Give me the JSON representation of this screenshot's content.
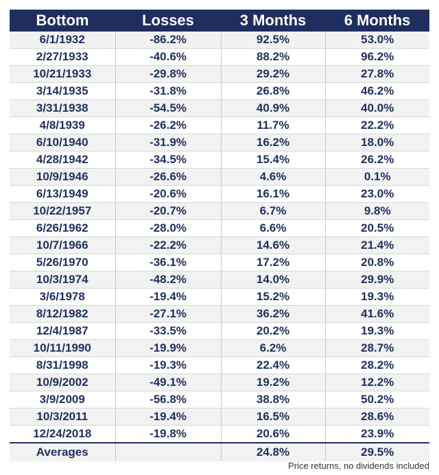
{
  "table": {
    "headers": [
      "Bottom",
      "Losses",
      "3 Months",
      "6 Months"
    ],
    "rows": [
      [
        "6/1/1932",
        "-86.2%",
        "92.5%",
        "53.0%"
      ],
      [
        "2/27/1933",
        "-40.6%",
        "88.2%",
        "96.2%"
      ],
      [
        "10/21/1933",
        "-29.8%",
        "29.2%",
        "27.8%"
      ],
      [
        "3/14/1935",
        "-31.8%",
        "26.8%",
        "46.2%"
      ],
      [
        "3/31/1938",
        "-54.5%",
        "40.9%",
        "40.0%"
      ],
      [
        "4/8/1939",
        "-26.2%",
        "11.7%",
        "22.2%"
      ],
      [
        "6/10/1940",
        "-31.9%",
        "16.2%",
        "18.0%"
      ],
      [
        "4/28/1942",
        "-34.5%",
        "15.4%",
        "26.2%"
      ],
      [
        "10/9/1946",
        "-26.6%",
        "4.6%",
        "0.1%"
      ],
      [
        "6/13/1949",
        "-20.6%",
        "16.1%",
        "23.0%"
      ],
      [
        "10/22/1957",
        "-20.7%",
        "6.7%",
        "9.8%"
      ],
      [
        "6/26/1962",
        "-28.0%",
        "6.6%",
        "20.5%"
      ],
      [
        "10/7/1966",
        "-22.2%",
        "14.6%",
        "21.4%"
      ],
      [
        "5/26/1970",
        "-36.1%",
        "17.2%",
        "20.8%"
      ],
      [
        "10/3/1974",
        "-48.2%",
        "14.0%",
        "29.9%"
      ],
      [
        "3/6/1978",
        "-19.4%",
        "15.2%",
        "19.3%"
      ],
      [
        "8/12/1982",
        "-27.1%",
        "36.2%",
        "41.6%"
      ],
      [
        "12/4/1987",
        "-33.5%",
        "20.2%",
        "19.3%"
      ],
      [
        "10/11/1990",
        "-19.9%",
        "6.2%",
        "28.7%"
      ],
      [
        "8/31/1998",
        "-19.3%",
        "22.4%",
        "28.2%"
      ],
      [
        "10/9/2002",
        "-49.1%",
        "19.2%",
        "12.2%"
      ],
      [
        "3/9/2009",
        "-56.8%",
        "38.8%",
        "50.2%"
      ],
      [
        "10/3/2011",
        "-19.4%",
        "16.5%",
        "28.6%"
      ],
      [
        "12/24/2018",
        "-19.8%",
        "20.6%",
        "23.9%"
      ]
    ],
    "averages": {
      "label": "Averages",
      "losses": "",
      "three_months": "24.8%",
      "six_months": "29.5%"
    }
  },
  "footnote": "Price returns, no dividends included"
}
